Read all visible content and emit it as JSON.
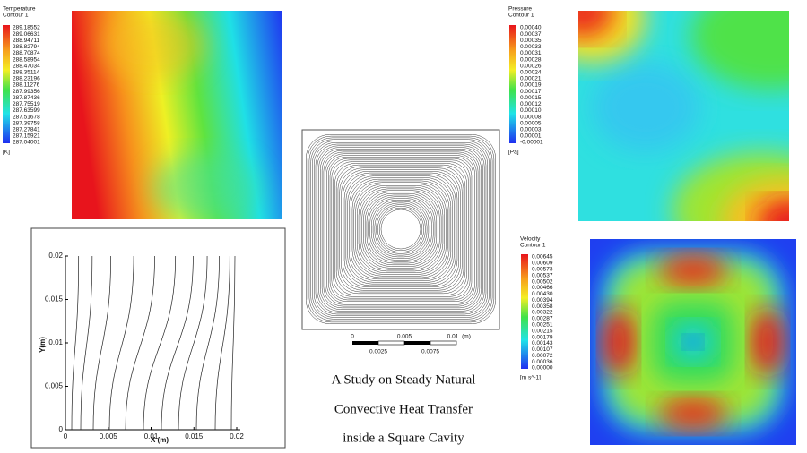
{
  "temperature": {
    "title": "Temperature",
    "subtitle": "Contour 1",
    "levels": [
      "289.18552",
      "289.06631",
      "288.94711",
      "288.82794",
      "288.70874",
      "288.58954",
      "288.47034",
      "288.35114",
      "288.23196",
      "288.11276",
      "287.99356",
      "287.87436",
      "287.75519",
      "287.63599",
      "287.51678",
      "287.39758",
      "287.27841",
      "287.15921",
      "287.04001"
    ],
    "unit": "[K]"
  },
  "pressure": {
    "title": "Pressure",
    "subtitle": "Contour 1",
    "levels": [
      "0.00040",
      "0.00037",
      "0.00035",
      "0.00033",
      "0.00031",
      "0.00028",
      "0.00026",
      "0.00024",
      "0.00021",
      "0.00019",
      "0.00017",
      "0.00015",
      "0.00012",
      "0.00010",
      "0.00008",
      "0.00005",
      "0.00003",
      "0.00001",
      "-0.00001"
    ],
    "unit": "[Pa]"
  },
  "velocity": {
    "title": "Velocity",
    "subtitle": "Contour 1",
    "levels": [
      "0.00645",
      "0.00609",
      "0.00573",
      "0.00537",
      "0.00502",
      "0.00466",
      "0.00430",
      "0.00394",
      "0.00358",
      "0.00322",
      "0.00287",
      "0.00251",
      "0.00215",
      "0.00179",
      "0.00143",
      "0.00107",
      "0.00072",
      "0.00036",
      "0.00000"
    ],
    "unit": "[m s^-1]"
  },
  "isotherm_plot": {
    "x_label": "X (m)",
    "y_label": "Y(m)",
    "x_ticks": [
      "0",
      "0.005",
      "0.01",
      "0.015",
      "0.02"
    ],
    "y_ticks": [
      "0",
      "0.005",
      "0.01",
      "0.015",
      "0.02"
    ]
  },
  "scale_bar": {
    "top_labels": [
      "0",
      "0.005",
      "0.01"
    ],
    "unit": "(m)",
    "bottom_labels": [
      "0.0025",
      "0.0075"
    ]
  },
  "caption": [
    "A Study on Steady Natural",
    "Convective Heat Transfer",
    "inside a Square Cavity"
  ]
}
